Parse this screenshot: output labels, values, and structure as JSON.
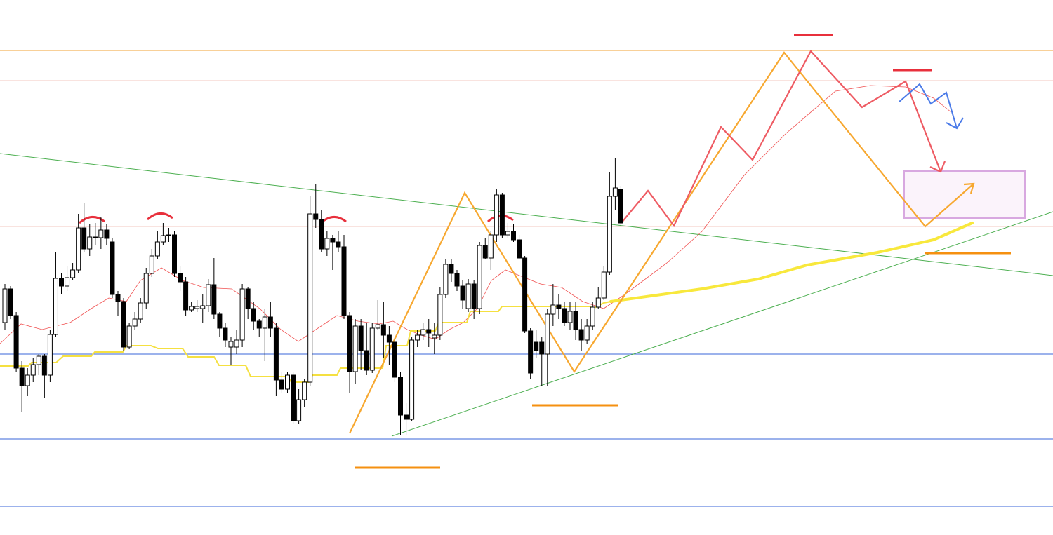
{
  "chart_data": {
    "type": "candlestick",
    "open": [
      540,
      588,
      550,
      475,
      450,
      465,
      480,
      492,
      465,
      523,
      603,
      592,
      604,
      615,
      675,
      645,
      662,
      661,
      672,
      655,
      580,
      570,
      505,
      535,
      545,
      568,
      610,
      635,
      655,
      664,
      665,
      610,
      598,
      558,
      560,
      560,
      564,
      594,
      552,
      532,
      505,
      505,
      515,
      588,
      560,
      542,
      532,
      548,
      532,
      458,
      445,
      465,
      400,
      430,
      455,
      695,
      687,
      645,
      660,
      655,
      648,
      550,
      470,
      535,
      500,
      472,
      532,
      537,
      522,
      512,
      462,
      408,
      402,
      515,
      522,
      530,
      518,
      522,
      580,
      623,
      610,
      592,
      560,
      595,
      560,
      650,
      632,
      665,
      722,
      665,
      670,
      658,
      632,
      528,
      512,
      512,
      495,
      552,
      565,
      560,
      540,
      556,
      530,
      515,
      535,
      562,
      575,
      612,
      720,
      730
    ],
    "high": [
      595,
      592,
      555,
      485,
      475,
      490,
      495,
      495,
      530,
      640,
      610,
      620,
      625,
      695,
      710,
      680,
      682,
      690,
      680,
      660,
      585,
      575,
      540,
      555,
      575,
      618,
      645,
      670,
      682,
      675,
      670,
      620,
      605,
      570,
      572,
      580,
      602,
      632,
      555,
      540,
      520,
      530,
      595,
      590,
      570,
      545,
      560,
      570,
      540,
      470,
      470,
      470,
      445,
      460,
      720,
      738,
      700,
      670,
      665,
      670,
      665,
      555,
      545,
      545,
      540,
      540,
      572,
      570,
      535,
      520,
      470,
      425,
      520,
      530,
      540,
      545,
      540,
      590,
      630,
      630,
      615,
      600,
      602,
      600,
      655,
      660,
      670,
      730,
      725,
      682,
      680,
      665,
      635,
      532,
      530,
      520,
      560,
      595,
      580,
      570,
      570,
      570,
      545,
      545,
      570,
      590,
      620,
      755,
      775,
      735
    ],
    "low": [
      530,
      545,
      470,
      412,
      435,
      455,
      465,
      432,
      455,
      520,
      580,
      585,
      600,
      610,
      640,
      635,
      650,
      645,
      650,
      575,
      550,
      500,
      502,
      530,
      540,
      560,
      605,
      630,
      650,
      655,
      605,
      585,
      550,
      555,
      555,
      540,
      555,
      545,
      520,
      505,
      480,
      495,
      505,
      545,
      530,
      520,
      485,
      520,
      435,
      440,
      440,
      395,
      395,
      420,
      450,
      675,
      640,
      635,
      615,
      640,
      545,
      440,
      452,
      472,
      465,
      468,
      530,
      490,
      480,
      455,
      380,
      380,
      400,
      505,
      515,
      505,
      495,
      515,
      575,
      598,
      585,
      560,
      555,
      545,
      552,
      630,
      615,
      655,
      660,
      660,
      655,
      630,
      525,
      460,
      490,
      450,
      450,
      535,
      545,
      535,
      530,
      515,
      500,
      510,
      530,
      560,
      572,
      608,
      700,
      678
    ],
    "close": [
      588,
      550,
      475,
      450,
      465,
      480,
      492,
      465,
      523,
      603,
      592,
      604,
      615,
      675,
      645,
      662,
      661,
      672,
      660,
      580,
      570,
      505,
      535,
      545,
      568,
      610,
      635,
      655,
      664,
      665,
      610,
      598,
      558,
      563,
      563,
      564,
      594,
      552,
      532,
      515,
      513,
      515,
      588,
      560,
      542,
      532,
      548,
      532,
      458,
      445,
      465,
      400,
      430,
      455,
      695,
      687,
      645,
      660,
      655,
      648,
      550,
      470,
      535,
      500,
      472,
      532,
      537,
      522,
      512,
      462,
      408,
      402,
      515,
      522,
      530,
      525,
      522,
      580,
      623,
      610,
      592,
      572,
      595,
      560,
      650,
      632,
      665,
      722,
      665,
      670,
      658,
      632,
      528,
      468,
      500,
      495,
      552,
      565,
      560,
      540,
      556,
      530,
      515,
      535,
      562,
      575,
      612,
      720,
      732,
      682
    ],
    "ylim": [
      237,
      1000
    ]
  }
}
